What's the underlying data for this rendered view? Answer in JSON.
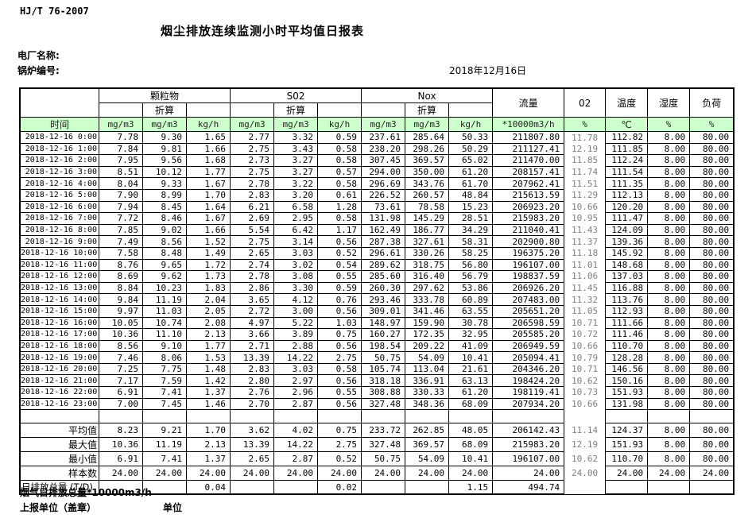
{
  "header": {
    "standard": "HJ/T  76-2007",
    "title": "烟尘排放连续监测小时平均值日报表",
    "plant_label": "电厂名称:",
    "boiler_label": "锅炉编号:",
    "date": "2018年12月16日"
  },
  "table": {
    "time_header": "时间",
    "pm_label": "颗粒物",
    "so2_label": "S02",
    "nox_label": "Nox",
    "converted_label": "折算",
    "flow_label": "流量",
    "flow_unit": "*10000m3/h",
    "o2_label": "02",
    "o2_unit": "%",
    "temp_label": "温度",
    "temp_unit": "℃",
    "humidity_label": "湿度",
    "humidity_unit": "%",
    "load_label": "负荷",
    "load_unit": "%",
    "unit_mg": "mg/m3",
    "unit_kg": "kg/h",
    "rows": [
      {
        "time": "2018-12-16 0:00",
        "values": [
          "7.78",
          "9.30",
          "1.65",
          "2.77",
          "3.32",
          "0.59",
          "237.61",
          "285.64",
          "50.33",
          "211807.80",
          "11.78",
          "112.82",
          "8.00",
          "80.00"
        ]
      },
      {
        "time": "2018-12-16 1:00",
        "values": [
          "7.84",
          "9.81",
          "1.66",
          "2.75",
          "3.43",
          "0.58",
          "238.20",
          "298.26",
          "50.29",
          "211127.41",
          "12.19",
          "111.85",
          "8.00",
          "80.00"
        ]
      },
      {
        "time": "2018-12-16 2:00",
        "values": [
          "7.95",
          "9.56",
          "1.68",
          "2.73",
          "3.27",
          "0.58",
          "307.45",
          "369.57",
          "65.02",
          "211470.00",
          "11.85",
          "112.24",
          "8.00",
          "80.00"
        ]
      },
      {
        "time": "2018-12-16 3:00",
        "values": [
          "8.51",
          "10.12",
          "1.77",
          "2.75",
          "3.27",
          "0.57",
          "294.00",
          "350.00",
          "61.20",
          "208157.41",
          "11.74",
          "111.54",
          "8.00",
          "80.00"
        ]
      },
      {
        "time": "2018-12-16 4:00",
        "values": [
          "8.04",
          "9.33",
          "1.67",
          "2.78",
          "3.22",
          "0.58",
          "296.69",
          "343.76",
          "61.70",
          "207962.41",
          "11.51",
          "111.35",
          "8.00",
          "80.00"
        ]
      },
      {
        "time": "2018-12-16 5:00",
        "values": [
          "7.90",
          "8.99",
          "1.70",
          "2.83",
          "3.20",
          "0.61",
          "226.52",
          "260.57",
          "48.84",
          "215613.59",
          "11.29",
          "112.13",
          "8.00",
          "80.00"
        ]
      },
      {
        "time": "2018-12-16 6:00",
        "values": [
          "7.94",
          "8.45",
          "1.64",
          "6.21",
          "6.58",
          "1.28",
          "73.61",
          "78.58",
          "15.23",
          "206923.20",
          "10.66",
          "120.20",
          "8.00",
          "80.00"
        ]
      },
      {
        "time": "2018-12-16 7:00",
        "values": [
          "7.72",
          "8.46",
          "1.67",
          "2.69",
          "2.95",
          "0.58",
          "131.98",
          "145.29",
          "28.51",
          "215983.20",
          "10.95",
          "111.47",
          "8.00",
          "80.00"
        ]
      },
      {
        "time": "2018-12-16 8:00",
        "values": [
          "7.85",
          "9.02",
          "1.66",
          "5.54",
          "6.42",
          "1.17",
          "162.49",
          "186.77",
          "34.29",
          "211040.41",
          "11.43",
          "124.09",
          "8.00",
          "80.00"
        ]
      },
      {
        "time": "2018-12-16 9:00",
        "values": [
          "7.49",
          "8.56",
          "1.52",
          "2.75",
          "3.14",
          "0.56",
          "287.38",
          "327.61",
          "58.31",
          "202900.80",
          "11.37",
          "139.36",
          "8.00",
          "80.00"
        ]
      },
      {
        "time": "2018-12-16 10:00",
        "values": [
          "7.58",
          "8.48",
          "1.49",
          "2.65",
          "3.03",
          "0.52",
          "296.61",
          "330.26",
          "58.25",
          "196375.20",
          "11.18",
          "145.92",
          "8.00",
          "80.00"
        ]
      },
      {
        "time": "2018-12-16 11:00",
        "values": [
          "8.76",
          "9.65",
          "1.72",
          "2.74",
          "3.02",
          "0.54",
          "289.62",
          "318.75",
          "56.80",
          "196107.00",
          "11.01",
          "148.68",
          "8.00",
          "80.00"
        ]
      },
      {
        "time": "2018-12-16 12:00",
        "values": [
          "8.69",
          "9.62",
          "1.73",
          "2.78",
          "3.08",
          "0.55",
          "285.60",
          "316.40",
          "56.79",
          "198837.59",
          "11.06",
          "137.03",
          "8.00",
          "80.00"
        ]
      },
      {
        "time": "2018-12-16 13:00",
        "values": [
          "8.84",
          "10.23",
          "1.83",
          "2.86",
          "3.30",
          "0.59",
          "260.30",
          "297.62",
          "53.86",
          "206926.20",
          "11.45",
          "116.88",
          "8.00",
          "80.00"
        ]
      },
      {
        "time": "2018-12-16 14:00",
        "values": [
          "9.84",
          "11.19",
          "2.04",
          "3.65",
          "4.12",
          "0.76",
          "293.46",
          "333.78",
          "60.89",
          "207483.00",
          "11.32",
          "113.76",
          "8.00",
          "80.00"
        ]
      },
      {
        "time": "2018-12-16 15:00",
        "values": [
          "9.97",
          "11.03",
          "2.05",
          "2.72",
          "3.00",
          "0.56",
          "309.01",
          "341.46",
          "63.55",
          "205651.20",
          "11.05",
          "112.93",
          "8.00",
          "80.00"
        ]
      },
      {
        "time": "2018-12-16 16:00",
        "values": [
          "10.05",
          "10.74",
          "2.08",
          "4.97",
          "5.22",
          "1.03",
          "148.97",
          "159.90",
          "30.78",
          "206598.59",
          "10.71",
          "111.66",
          "8.00",
          "80.00"
        ]
      },
      {
        "time": "2018-12-16 17:00",
        "values": [
          "10.36",
          "11.10",
          "2.13",
          "3.66",
          "3.89",
          "0.75",
          "160.27",
          "172.35",
          "32.95",
          "205585.20",
          "10.72",
          "111.46",
          "8.00",
          "80.00"
        ]
      },
      {
        "time": "2018-12-16 18:00",
        "values": [
          "8.56",
          "9.10",
          "1.77",
          "2.71",
          "2.88",
          "0.56",
          "198.54",
          "209.22",
          "41.09",
          "206949.59",
          "10.66",
          "110.70",
          "8.00",
          "80.00"
        ]
      },
      {
        "time": "2018-12-16 19:00",
        "values": [
          "7.46",
          "8.06",
          "1.53",
          "13.39",
          "14.22",
          "2.75",
          "50.75",
          "54.09",
          "10.41",
          "205094.41",
          "10.79",
          "128.28",
          "8.00",
          "80.00"
        ]
      },
      {
        "time": "2018-12-16 20:00",
        "values": [
          "7.25",
          "7.75",
          "1.48",
          "2.83",
          "3.03",
          "0.58",
          "105.74",
          "113.04",
          "21.61",
          "204346.20",
          "10.71",
          "146.56",
          "8.00",
          "80.00"
        ]
      },
      {
        "time": "2018-12-16 21:00",
        "values": [
          "7.17",
          "7.59",
          "1.42",
          "2.80",
          "2.97",
          "0.56",
          "318.18",
          "336.91",
          "63.13",
          "198424.20",
          "10.62",
          "150.16",
          "8.00",
          "80.00"
        ]
      },
      {
        "time": "2018-12-16 22:00",
        "values": [
          "6.91",
          "7.41",
          "1.37",
          "2.76",
          "2.96",
          "0.55",
          "308.88",
          "330.33",
          "61.20",
          "198119.41",
          "10.73",
          "151.93",
          "8.00",
          "80.00"
        ]
      },
      {
        "time": "2018-12-16 23:00",
        "values": [
          "7.00",
          "7.45",
          "1.46",
          "2.70",
          "2.87",
          "0.56",
          "327.48",
          "348.36",
          "68.09",
          "207934.20",
          "10.66",
          "131.98",
          "8.00",
          "80.00"
        ]
      }
    ],
    "summary": [
      {
        "label": "平均值",
        "values": [
          "8.23",
          "9.21",
          "1.70",
          "3.62",
          "4.02",
          "0.75",
          "233.72",
          "262.85",
          "48.05",
          "206142.43",
          "11.14",
          "124.37",
          "8.00",
          "80.00"
        ]
      },
      {
        "label": "最大值",
        "values": [
          "10.36",
          "11.19",
          "2.13",
          "13.39",
          "14.22",
          "2.75",
          "327.48",
          "369.57",
          "68.09",
          "215983.20",
          "12.19",
          "151.93",
          "8.00",
          "80.00"
        ]
      },
      {
        "label": "最小值",
        "values": [
          "6.91",
          "7.41",
          "1.37",
          "2.65",
          "2.87",
          "0.52",
          "50.75",
          "54.09",
          "10.41",
          "196107.00",
          "10.62",
          "110.70",
          "8.00",
          "80.00"
        ]
      },
      {
        "label": "样本数",
        "values": [
          "24.00",
          "24.00",
          "24.00",
          "24.00",
          "24.00",
          "24.00",
          "24.00",
          "24.00",
          "24.00",
          "24.00",
          "24.00",
          "24.00",
          "24.00",
          "24.00"
        ]
      },
      {
        "label": "日排放总量 (T/D)",
        "values": [
          "",
          "",
          "0.04",
          "",
          "",
          "0.02",
          "",
          "",
          "1.15",
          "494.74",
          "",
          "",
          "",
          ""
        ]
      }
    ]
  },
  "footer": {
    "note": "烟气日排放总量*10000m3/h",
    "report_unit": "上报单位（盖章）",
    "unit": "单位"
  }
}
